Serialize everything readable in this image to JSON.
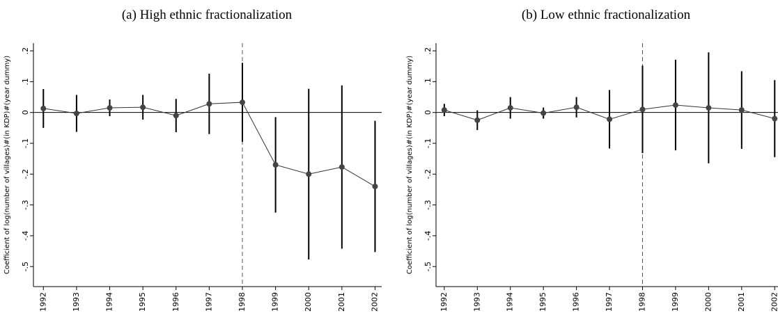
{
  "chart_data": [
    {
      "type": "coefplot",
      "title": "(a) High ethnic fractionalization",
      "y_label": "Coefficient of log(number of villages)#(in KDP)#(year dummy)",
      "x": [
        1992,
        1993,
        1994,
        1995,
        1996,
        1997,
        1998,
        1999,
        2000,
        2001,
        2002
      ],
      "values": [
        0.013,
        -0.003,
        0.015,
        0.017,
        -0.01,
        0.028,
        0.033,
        -0.17,
        -0.2,
        -0.177,
        -0.24
      ],
      "errors": [
        0.063,
        0.06,
        0.027,
        0.04,
        0.054,
        0.098,
        0.128,
        0.155,
        0.277,
        0.265,
        0.213
      ],
      "color": "#444444",
      "xlim": [
        1991.7,
        2002.2
      ],
      "ylim": [
        -0.565,
        0.225
      ],
      "yticks": [
        {
          "value": 0.2,
          "label": ".2"
        },
        {
          "value": 0.1,
          "label": ".1"
        },
        0,
        {
          "value": -0.1,
          "label": "-.1"
        },
        {
          "value": -0.2,
          "label": "-.2"
        },
        {
          "value": -0.3,
          "label": "-.3"
        },
        {
          "value": -0.4,
          "label": "-.4"
        },
        {
          "value": -0.5,
          "label": "-.5"
        }
      ],
      "hline": 0,
      "vline": 1998
    },
    {
      "type": "coefplot",
      "title": "(b) Low ethnic fractionalization",
      "y_label": "Coefficient of log(number of villages)#(in KDP)#(year dummy)",
      "x": [
        1992,
        1993,
        1994,
        1995,
        1996,
        1997,
        1998,
        1999,
        2000,
        2001,
        2002
      ],
      "values": [
        0.008,
        -0.025,
        0.015,
        -0.002,
        0.017,
        -0.022,
        0.01,
        0.024,
        0.015,
        0.008,
        -0.02
      ],
      "errors": [
        0.02,
        0.032,
        0.035,
        0.018,
        0.033,
        0.095,
        0.142,
        0.147,
        0.18,
        0.126,
        0.125
      ],
      "color": "#444444",
      "xlim": [
        1991.75,
        2002.1
      ],
      "ylim": [
        -0.565,
        0.225
      ],
      "yticks": [
        {
          "value": 0.2,
          "label": ".2"
        },
        {
          "value": 0.1,
          "label": ".1"
        },
        0,
        {
          "value": -0.1,
          "label": "-.1"
        },
        {
          "value": -0.2,
          "label": "-.2"
        },
        {
          "value": -0.3,
          "label": "-.3"
        },
        {
          "value": -0.4,
          "label": "-.4"
        },
        {
          "value": -0.5,
          "label": "-.5"
        }
      ],
      "hline": 0,
      "vline": 1998
    }
  ]
}
